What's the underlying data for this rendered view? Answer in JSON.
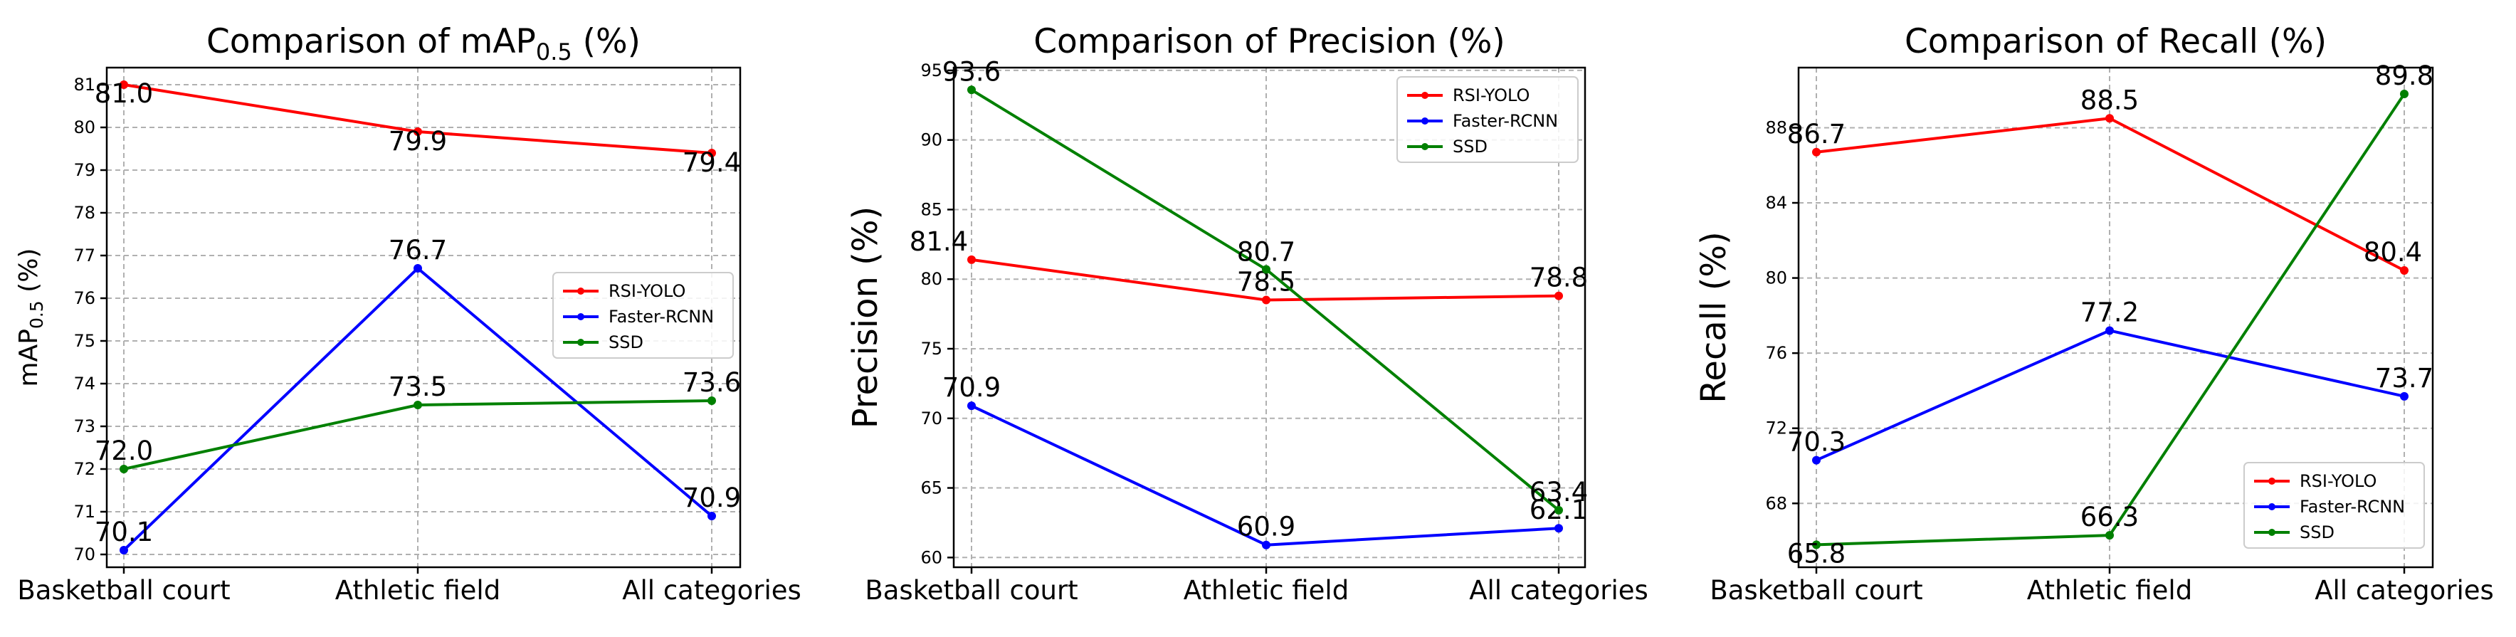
{
  "chart_data": [
    {
      "type": "line",
      "title_main": "Comparison of mAP",
      "title_sub": "0.5",
      "title_suffix": " (%)",
      "ylabel_main": "mAP",
      "ylabel_sub": "0.5",
      "ylabel_suffix": " (%)",
      "xlabel": "",
      "categories": [
        "Basketball court",
        "Athletic field",
        "All categories"
      ],
      "ylim": [
        69.7,
        81.4
      ],
      "yticks": [
        70,
        71,
        72,
        73,
        74,
        75,
        76,
        77,
        78,
        79,
        80,
        81
      ],
      "grid": true,
      "legend_loc": "center-right",
      "series": [
        {
          "name": "RSI-YOLO",
          "color": "#ff0000",
          "values": [
            81.0,
            79.9,
            79.4
          ],
          "labels": [
            "81.0",
            "79.9",
            "79.4"
          ]
        },
        {
          "name": "Faster-RCNN",
          "color": "#0000ff",
          "values": [
            70.1,
            76.7,
            70.9
          ],
          "labels": [
            "70.1",
            "76.7",
            "70.9"
          ]
        },
        {
          "name": "SSD",
          "color": "#008000",
          "values": [
            72.0,
            73.5,
            73.6
          ],
          "labels": [
            "72.0",
            "73.5",
            "73.6"
          ]
        }
      ]
    },
    {
      "type": "line",
      "title_main": "Comparison of Precision (%)",
      "title_sub": "",
      "title_suffix": "",
      "ylabel_main": "Precision (%)",
      "ylabel_sub": "",
      "ylabel_suffix": "",
      "xlabel": "",
      "categories": [
        "Basketball court",
        "Athletic field",
        "All categories"
      ],
      "ylim": [
        59.3,
        95.2
      ],
      "yticks": [
        60,
        65,
        70,
        75,
        80,
        85,
        90,
        95
      ],
      "grid": true,
      "legend_loc": "top-right",
      "series": [
        {
          "name": "RSI-YOLO",
          "color": "#ff0000",
          "values": [
            81.4,
            78.5,
            78.8
          ],
          "labels": [
            "81.4",
            "78.5",
            "78.8"
          ]
        },
        {
          "name": "Faster-RCNN",
          "color": "#0000ff",
          "values": [
            70.9,
            60.9,
            62.1
          ],
          "labels": [
            "70.9",
            "60.9",
            "62.1"
          ]
        },
        {
          "name": "SSD",
          "color": "#008000",
          "values": [
            93.6,
            80.7,
            63.4
          ],
          "labels": [
            "93.6",
            "80.7",
            "63.4"
          ]
        }
      ]
    },
    {
      "type": "line",
      "title_main": "Comparison of Recall (%)",
      "title_sub": "",
      "title_suffix": "",
      "ylabel_main": "Recall (%)",
      "ylabel_sub": "",
      "ylabel_suffix": "",
      "xlabel": "",
      "categories": [
        "Basketball court",
        "Athletic field",
        "All categories"
      ],
      "ylim": [
        64.6,
        91.2
      ],
      "yticks": [
        68,
        72,
        76,
        80,
        84,
        88
      ],
      "grid": true,
      "legend_loc": "bottom-right",
      "series": [
        {
          "name": "RSI-YOLO",
          "color": "#ff0000",
          "values": [
            86.7,
            88.5,
            80.4
          ],
          "labels": [
            "86.7",
            "88.5",
            "80.4"
          ]
        },
        {
          "name": "Faster-RCNN",
          "color": "#0000ff",
          "values": [
            70.3,
            77.2,
            73.7
          ],
          "labels": [
            "70.3",
            "77.2",
            "73.7"
          ]
        },
        {
          "name": "SSD",
          "color": "#008000",
          "values": [
            65.8,
            66.3,
            89.8
          ],
          "labels": [
            "65.8",
            "66.3",
            "89.8"
          ]
        }
      ]
    }
  ]
}
